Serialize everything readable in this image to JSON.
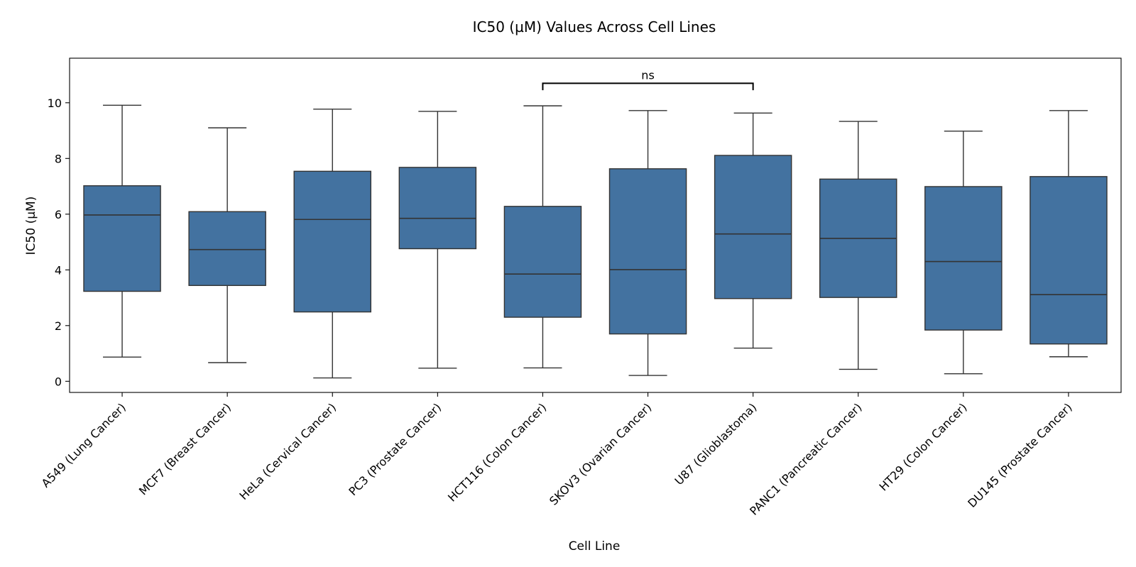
{
  "chart_data": {
    "type": "box",
    "title": "IC50 (µM) Values Across Cell Lines",
    "xlabel": "Cell Line",
    "ylabel": "IC50 (µM)",
    "ylim": [
      -0.4,
      11.6
    ],
    "yticks": [
      0,
      2,
      4,
      6,
      8,
      10
    ],
    "grid": false,
    "box_color": "#4372a0",
    "line_color": "#333333",
    "categories": [
      "A549 (Lung Cancer)",
      "MCF7 (Breast Cancer)",
      "HeLa (Cervical Cancer)",
      "PC3 (Prostate Cancer)",
      "HCT116 (Colon Cancer)",
      "SKOV3 (Ovarian Cancer)",
      "U87 (Glioblastoma)",
      "PANC1 (Pancreatic Cancer)",
      "HT29 (Colon Cancer)",
      "DU145 (Prostate Cancer)"
    ],
    "boxes": [
      {
        "min": 0.87,
        "q1": 3.23,
        "median": 5.97,
        "q3": 7.02,
        "max": 9.91
      },
      {
        "min": 0.67,
        "q1": 3.44,
        "median": 4.73,
        "q3": 6.09,
        "max": 9.1
      },
      {
        "min": 0.12,
        "q1": 2.49,
        "median": 5.81,
        "q3": 7.54,
        "max": 9.77
      },
      {
        "min": 0.47,
        "q1": 4.76,
        "median": 5.85,
        "q3": 7.68,
        "max": 9.69
      },
      {
        "min": 0.48,
        "q1": 2.3,
        "median": 3.85,
        "q3": 6.28,
        "max": 9.89
      },
      {
        "min": 0.21,
        "q1": 1.7,
        "median": 4.01,
        "q3": 7.63,
        "max": 9.72
      },
      {
        "min": 1.19,
        "q1": 2.97,
        "median": 5.29,
        "q3": 8.11,
        "max": 9.63
      },
      {
        "min": 0.43,
        "q1": 3.01,
        "median": 5.13,
        "q3": 7.26,
        "max": 9.33
      },
      {
        "min": 0.27,
        "q1": 1.84,
        "median": 4.3,
        "q3": 6.99,
        "max": 8.98
      },
      {
        "min": 0.88,
        "q1": 1.34,
        "median": 3.11,
        "q3": 7.35,
        "max": 9.72
      }
    ],
    "annotations": [
      {
        "text": "ns",
        "from_category": 4,
        "to_category": 6,
        "y": 10.7,
        "tip": 0.25
      }
    ]
  }
}
